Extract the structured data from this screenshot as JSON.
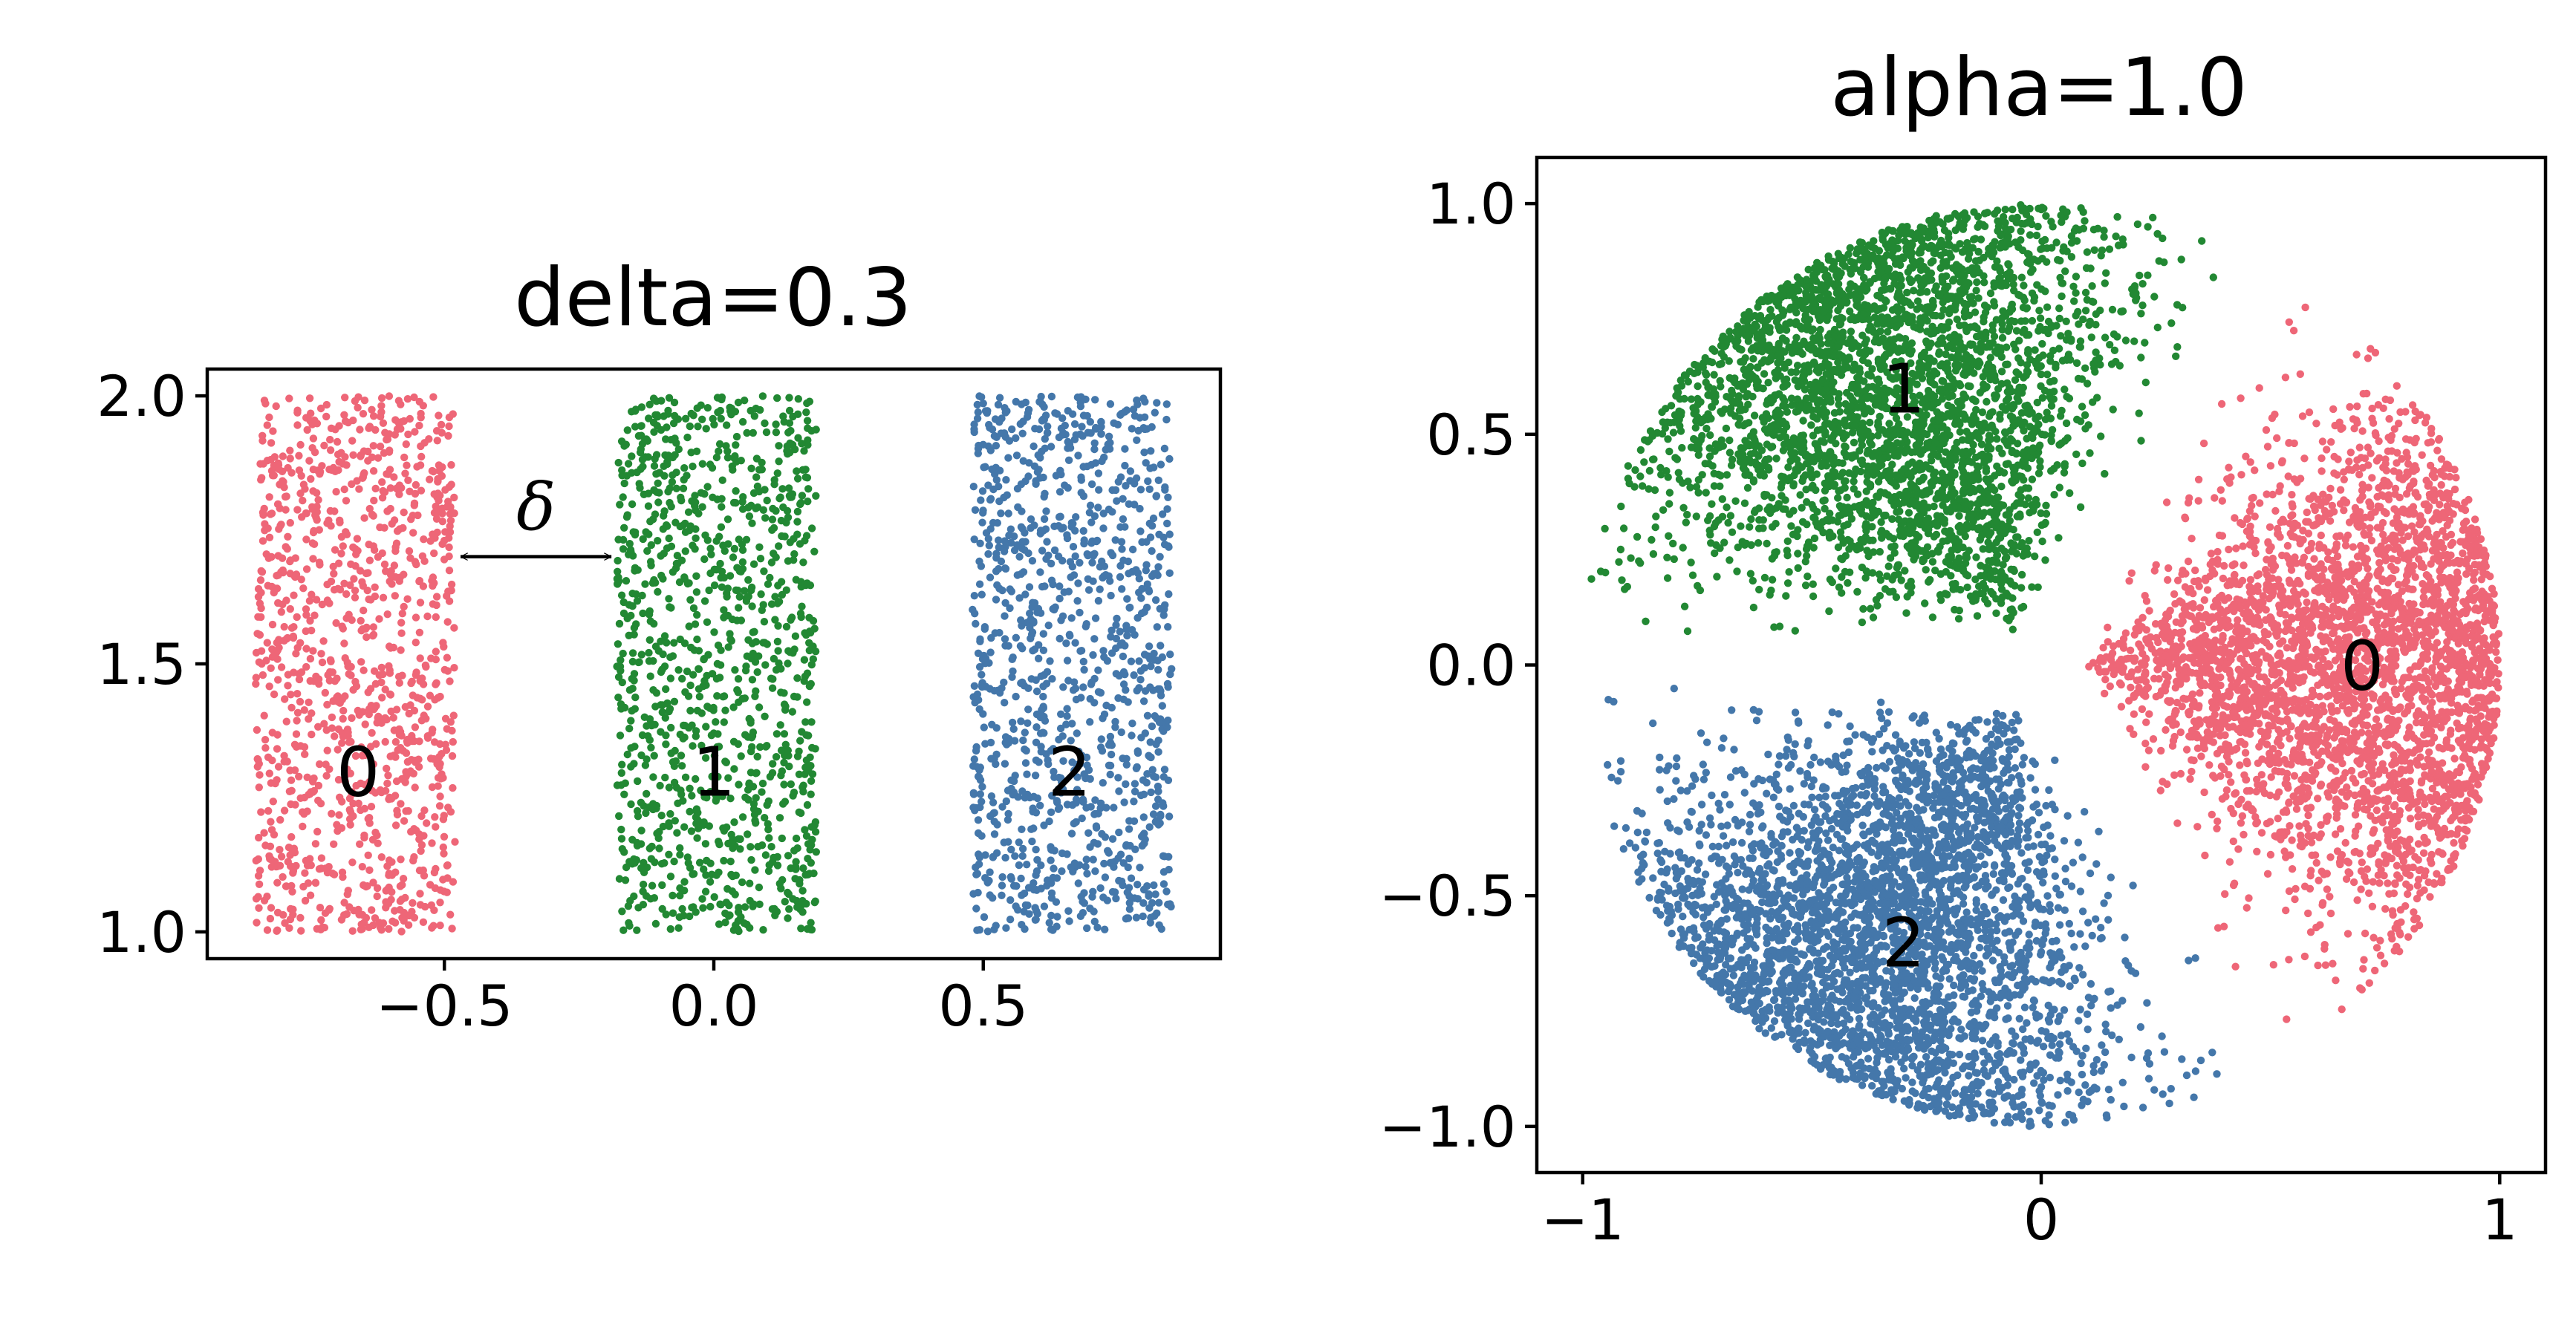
{
  "chart_data": [
    {
      "type": "scatter",
      "title": "delta=0.3",
      "xlabel": "",
      "ylabel": "",
      "xlim": [
        -0.94,
        0.94
      ],
      "ylim": [
        0.95,
        2.05
      ],
      "xticks": [
        -0.5,
        0.0,
        0.5
      ],
      "xtick_labels": [
        "−0.5",
        "0.0",
        "0.5"
      ],
      "yticks": [
        1.0,
        1.5,
        2.0
      ],
      "ytick_labels": [
        "1.0",
        "1.5",
        "2.0"
      ],
      "grid": false,
      "series": [
        {
          "label": "0",
          "color": "#ee6677",
          "x_range": [
            -0.85,
            -0.48
          ],
          "y_range": [
            1.0,
            2.0
          ],
          "n_points": 1100,
          "label_pos": {
            "x": -0.66,
            "y": 1.3
          }
        },
        {
          "label": "1",
          "color": "#228833",
          "x_range": [
            -0.18,
            0.19
          ],
          "y_range": [
            1.0,
            2.0
          ],
          "n_points": 1100,
          "label_pos": {
            "x": 0.0,
            "y": 1.3
          }
        },
        {
          "label": "2",
          "color": "#4477aa",
          "x_range": [
            0.48,
            0.85
          ],
          "y_range": [
            1.0,
            2.0
          ],
          "n_points": 1100,
          "label_pos": {
            "x": 0.66,
            "y": 1.3
          }
        }
      ],
      "annotation": {
        "text": "δ",
        "arrow_x": [
          -0.47,
          -0.19
        ],
        "arrow_y": 1.7
      }
    },
    {
      "type": "scatter",
      "title": "alpha=1.0",
      "xlabel": "",
      "ylabel": "",
      "xlim": [
        -1.1,
        1.1
      ],
      "ylim": [
        -1.1,
        1.1
      ],
      "xticks": [
        -1,
        0,
        1
      ],
      "xtick_labels": [
        "−1",
        "0",
        "1"
      ],
      "yticks": [
        1.0,
        0.5,
        0.0,
        -0.5,
        -1.0
      ],
      "ytick_labels": [
        "1.0",
        "0.5",
        "0.0",
        "−0.5",
        "−1.0"
      ],
      "grid": false,
      "series": [
        {
          "label": "0",
          "color": "#ee6677",
          "center_angle_deg": 0,
          "n_points": 3400,
          "label_pos": {
            "x": 0.7,
            "y": 0.0
          }
        },
        {
          "label": "1",
          "color": "#228833",
          "center_angle_deg": 120,
          "n_points": 3400,
          "label_pos": {
            "x": -0.3,
            "y": 0.6
          }
        },
        {
          "label": "2",
          "color": "#4477aa",
          "center_angle_deg": 240,
          "n_points": 3400,
          "label_pos": {
            "x": -0.3,
            "y": -0.6
          }
        }
      ]
    }
  ]
}
